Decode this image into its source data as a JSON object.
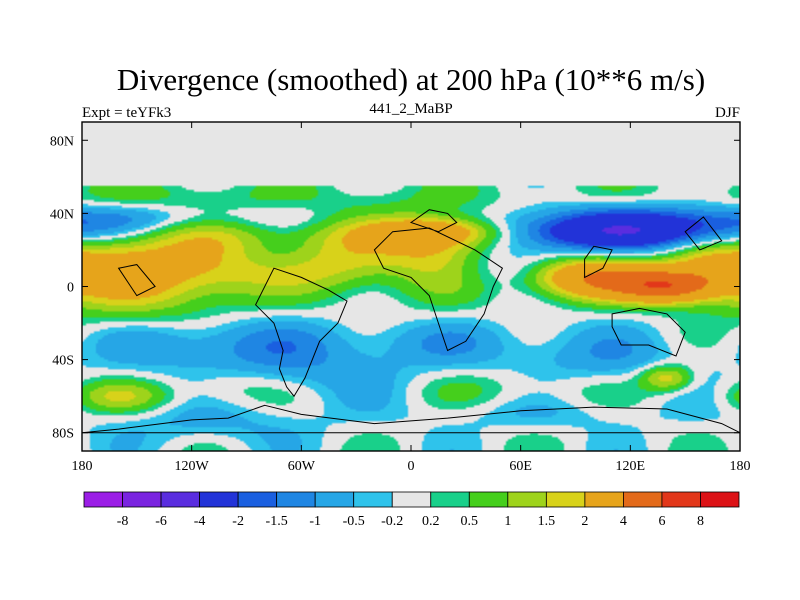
{
  "chart_data": {
    "type": "heatmap",
    "title": "Divergence (smoothed) at 200 hPa (10**6 m/s)",
    "subtitle_left": "Expt = teYFk3",
    "subtitle_center": "441_2_MaBP",
    "subtitle_right": "DJF",
    "x_tick_labels": [
      "180",
      "120W",
      "60W",
      "0",
      "60E",
      "120E",
      "180"
    ],
    "x_tick_values": [
      -180,
      -120,
      -60,
      0,
      60,
      120,
      180
    ],
    "y_tick_labels": [
      "80N",
      "40N",
      "0",
      "40S",
      "80S"
    ],
    "y_tick_values": [
      80,
      40,
      0,
      -40,
      -80
    ],
    "xlim": [
      -180,
      180
    ],
    "ylim": [
      -90,
      90
    ],
    "colorbar_labels": [
      "-8",
      "-6",
      "-4",
      "-2",
      "-1.5",
      "-1",
      "-0.5",
      "-0.2",
      "0.2",
      "0.5",
      "1",
      "1.5",
      "2",
      "4",
      "6",
      "8"
    ],
    "colorbar_colors": [
      "#9b1ee6",
      "#7a24e0",
      "#5a2ddf",
      "#2233d8",
      "#1a5fe0",
      "#1f86e3",
      "#26a6e6",
      "#2fc3eb",
      "#e6e6e6",
      "#19d08a",
      "#45cf1c",
      "#9ed31b",
      "#d8d21a",
      "#e6a41b",
      "#e36a1a",
      "#e2371a",
      "#dc1216"
    ],
    "fields": [
      {
        "lon": -150,
        "lat": 10,
        "sx": 35,
        "sy": 18,
        "value": 2.5
      },
      {
        "lon": -100,
        "lat": 15,
        "sx": 25,
        "sy": 14,
        "value": 1.5
      },
      {
        "lon": -40,
        "lat": 15,
        "sx": 25,
        "sy": 12,
        "value": 2.2
      },
      {
        "lon": 15,
        "lat": 18,
        "sx": 22,
        "sy": 14,
        "value": 2.5
      },
      {
        "lon": 100,
        "lat": 5,
        "sx": 25,
        "sy": 8,
        "value": 4
      },
      {
        "lon": 140,
        "lat": 0,
        "sx": 18,
        "sy": 6,
        "value": 4.5
      },
      {
        "lon": 165,
        "lat": 10,
        "sx": 20,
        "sy": 10,
        "value": 2
      },
      {
        "lon": 15,
        "lat": 30,
        "sx": 25,
        "sy": 5,
        "value": 2.2
      },
      {
        "lon": -40,
        "lat": 30,
        "sx": 80,
        "sy": 10,
        "value": 0.5
      },
      {
        "lon": -120,
        "lat": 48,
        "sx": 60,
        "sy": 8,
        "value": 0.4
      },
      {
        "lon": 80,
        "lat": 48,
        "sx": 100,
        "sy": 8,
        "value": 0.4
      },
      {
        "lon": 70,
        "lat": 30,
        "sx": 60,
        "sy": 8,
        "value": 1
      },
      {
        "lon": 10,
        "lat": -30,
        "sx": 40,
        "sy": 8,
        "value": -0.6
      },
      {
        "lon": -160,
        "lat": -60,
        "sx": 20,
        "sy": 6,
        "value": 1.3
      },
      {
        "lon": -100,
        "lat": -55,
        "sx": 20,
        "sy": 8,
        "value": 0.8
      },
      {
        "lon": 140,
        "lat": -50,
        "sx": 10,
        "sy": 5,
        "value": 2
      },
      {
        "lon": 60,
        "lat": -55,
        "sx": 40,
        "sy": 8,
        "value": 0.6
      },
      {
        "lon": -150,
        "lat": 38,
        "sx": 70,
        "sy": 6,
        "value": -1.3
      },
      {
        "lon": 100,
        "lat": 30,
        "sx": 60,
        "sy": 10,
        "value": -2.5
      },
      {
        "lon": 120,
        "lat": 30,
        "sx": 50,
        "sy": 6,
        "value": -2
      },
      {
        "lon": -70,
        "lat": 18,
        "sx": 40,
        "sy": 8,
        "value": -1
      },
      {
        "lon": 30,
        "lat": 10,
        "sx": 30,
        "sy": 8,
        "value": -1
      },
      {
        "lon": -110,
        "lat": -30,
        "sx": 40,
        "sy": 10,
        "value": -1
      },
      {
        "lon": -60,
        "lat": -45,
        "sx": 50,
        "sy": 12,
        "value": -0.8
      },
      {
        "lon": 100,
        "lat": -40,
        "sx": 40,
        "sy": 12,
        "value": -0.8
      },
      {
        "lon": -110,
        "lat": -75,
        "sx": 40,
        "sy": 8,
        "value": -0.6
      },
      {
        "lon": 70,
        "lat": -70,
        "sx": 50,
        "sy": 6,
        "value": -0.4
      }
    ]
  }
}
